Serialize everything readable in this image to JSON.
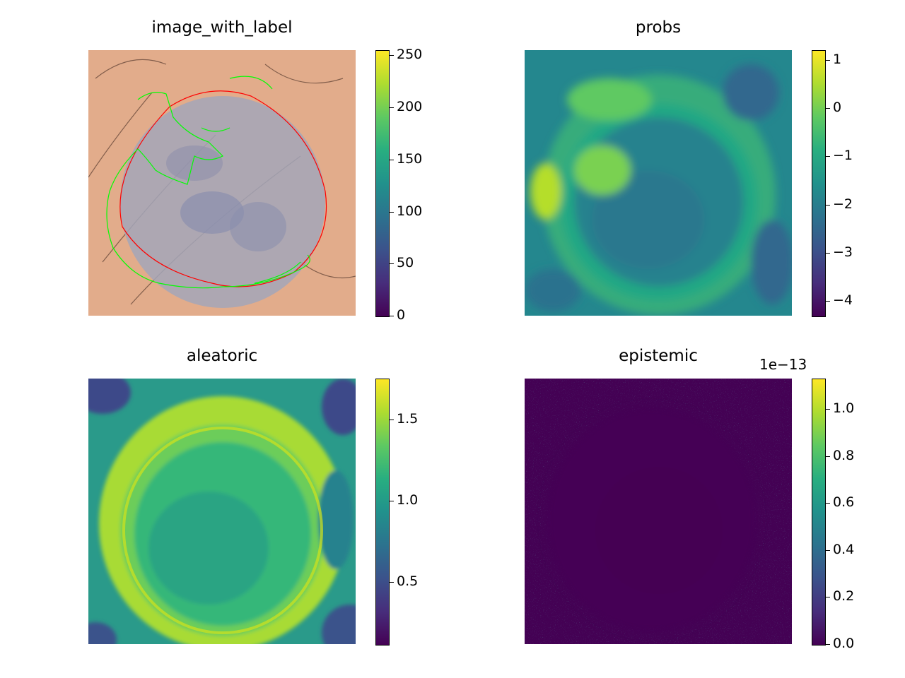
{
  "chart_data": [
    {
      "type": "heatmap",
      "title": "image_with_label",
      "colormap": "viridis",
      "colorbar": {
        "min": 0,
        "max": 255,
        "ticks": [
          0,
          50,
          100,
          150,
          200,
          250
        ],
        "tick_labels": [
          "0",
          "50",
          "100",
          "150",
          "200",
          "250"
        ]
      },
      "overlay": {
        "contours": [
          {
            "color": "#ff0000"
          },
          {
            "color": "#00ff00"
          }
        ]
      }
    },
    {
      "type": "heatmap",
      "title": "probs",
      "colormap": "viridis",
      "colorbar": {
        "min": -4.3,
        "max": 1.2,
        "ticks": [
          -4,
          -3,
          -2,
          -1,
          0,
          1
        ],
        "tick_labels": [
          "−4",
          "−3",
          "−2",
          "−1",
          "0",
          "1"
        ]
      }
    },
    {
      "type": "heatmap",
      "title": "aleatoric",
      "colormap": "viridis",
      "colorbar": {
        "min": 0.12,
        "max": 1.75,
        "ticks": [
          0.5,
          1.0,
          1.5
        ],
        "tick_labels": [
          "0.5",
          "1.0",
          "1.5"
        ]
      }
    },
    {
      "type": "heatmap",
      "title": "epistemic",
      "colormap": "viridis",
      "colorbar": {
        "min": 0.0,
        "max": 1.13,
        "ticks": [
          0.0,
          0.2,
          0.4,
          0.6,
          0.8,
          1.0
        ],
        "tick_labels": [
          "0.0",
          "0.2",
          "0.4",
          "0.6",
          "0.8",
          "1.0"
        ],
        "offset_text": "1e−13"
      }
    }
  ],
  "colors": {
    "viridis_low": "#440154",
    "viridis_mid": "#21918c",
    "viridis_high": "#fde725",
    "label_red": "#ff0000",
    "label_green": "#00ff00"
  }
}
